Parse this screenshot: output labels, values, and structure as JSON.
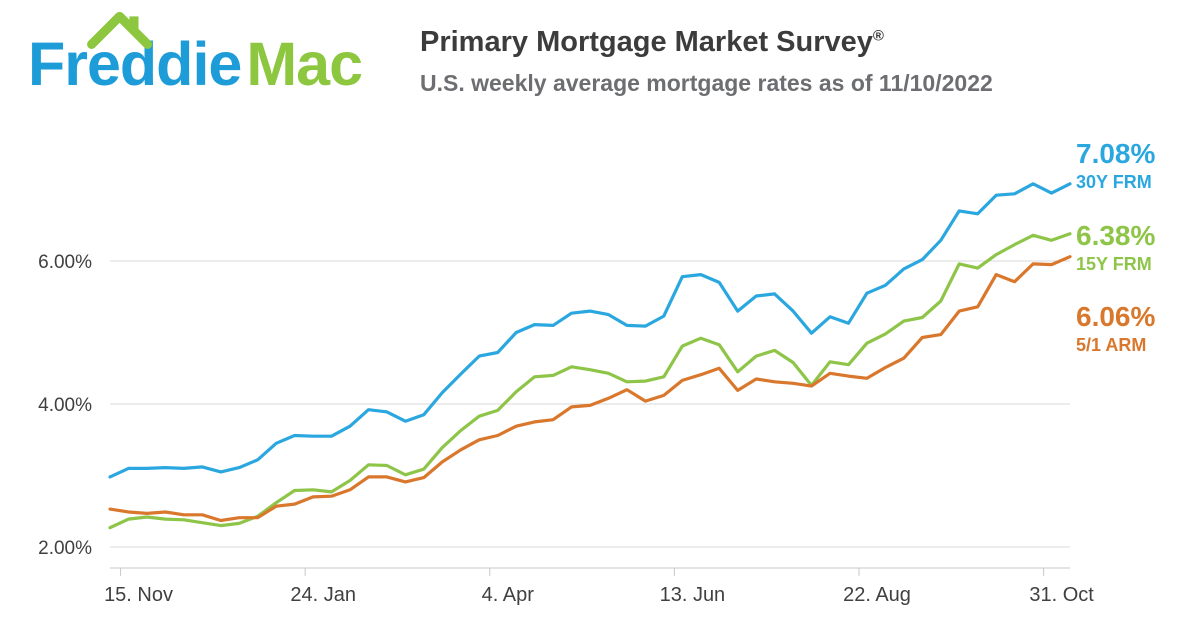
{
  "header": {
    "logo_part1": "Freddie",
    "logo_part2": "Mac",
    "title": "Primary Mortgage Market Survey",
    "title_registered": "®",
    "subtitle": "U.S. weekly average mortgage rates as of 11/10/2022"
  },
  "colors": {
    "logo_blue": "#1d9cd8",
    "logo_green": "#8dc63f",
    "line_30y": "#2ba7e0",
    "line_15y": "#8ec549",
    "line_51arm": "#d9782d",
    "grid": "#d8d8d8",
    "axis": "#c9c9c9",
    "tick_text": "#404040"
  },
  "legend": [
    {
      "rate": "7.08%",
      "label": "30Y FRM",
      "color": "#2ba7e0"
    },
    {
      "rate": "6.38%",
      "label": "15Y FRM",
      "color": "#8ec549"
    },
    {
      "rate": "6.06%",
      "label": "5/1 ARM",
      "color": "#d9782d"
    }
  ],
  "chart_data": {
    "type": "line",
    "title": "Primary Mortgage Market Survey",
    "subtitle": "U.S. weekly average mortgage rates as of 11/10/2022",
    "x_unit": "weekly",
    "x_range": [
      "2021-11-11",
      "2022-11-10"
    ],
    "grid": "horizontal",
    "legend_position": "right",
    "ylim": [
      1.7,
      7.6
    ],
    "y_ticks": [
      {
        "label": "2.00%",
        "value": 2
      },
      {
        "label": "4.00%",
        "value": 4
      },
      {
        "label": "6.00%",
        "value": 6
      }
    ],
    "x_ticks": [
      {
        "label": "15. Nov",
        "index": 0.571
      },
      {
        "label": "24. Jan",
        "index": 10.571
      },
      {
        "label": "4. Apr",
        "index": 20.571
      },
      {
        "label": "13. Jun",
        "index": 30.571
      },
      {
        "label": "22. Aug",
        "index": 40.571
      },
      {
        "label": "31. Oct",
        "index": 50.571
      }
    ],
    "series": [
      {
        "name": "30Y FRM",
        "color": "#2ba7e0",
        "final_label": "7.08%",
        "values": [
          2.98,
          3.1,
          3.1,
          3.11,
          3.1,
          3.12,
          3.05,
          3.11,
          3.22,
          3.45,
          3.56,
          3.55,
          3.55,
          3.69,
          3.92,
          3.89,
          3.76,
          3.85,
          4.16,
          4.42,
          4.67,
          4.72,
          5.0,
          5.11,
          5.1,
          5.27,
          5.3,
          5.25,
          5.1,
          5.09,
          5.23,
          5.78,
          5.81,
          5.7,
          5.3,
          5.51,
          5.54,
          5.3,
          4.99,
          5.22,
          5.13,
          5.55,
          5.66,
          5.89,
          6.02,
          6.29,
          6.7,
          6.66,
          6.92,
          6.94,
          7.08,
          6.95,
          7.08
        ]
      },
      {
        "name": "15Y FRM",
        "color": "#8ec549",
        "final_label": "6.38%",
        "values": [
          2.27,
          2.39,
          2.42,
          2.39,
          2.38,
          2.34,
          2.3,
          2.33,
          2.43,
          2.62,
          2.79,
          2.8,
          2.77,
          2.93,
          3.15,
          3.14,
          3.01,
          3.09,
          3.39,
          3.63,
          3.83,
          3.91,
          4.17,
          4.38,
          4.4,
          4.52,
          4.48,
          4.43,
          4.31,
          4.32,
          4.38,
          4.81,
          4.92,
          4.83,
          4.45,
          4.67,
          4.75,
          4.58,
          4.26,
          4.59,
          4.55,
          4.85,
          4.98,
          5.16,
          5.21,
          5.44,
          5.96,
          5.9,
          6.09,
          6.23,
          6.36,
          6.29,
          6.38
        ]
      },
      {
        "name": "5/1 ARM",
        "color": "#d9782d",
        "final_label": "6.06%",
        "values": [
          2.53,
          2.49,
          2.47,
          2.49,
          2.45,
          2.45,
          2.37,
          2.41,
          2.41,
          2.57,
          2.6,
          2.7,
          2.71,
          2.8,
          2.98,
          2.98,
          2.91,
          2.97,
          3.19,
          3.36,
          3.5,
          3.56,
          3.69,
          3.75,
          3.78,
          3.96,
          3.98,
          4.08,
          4.2,
          4.04,
          4.12,
          4.33,
          4.41,
          4.5,
          4.19,
          4.35,
          4.31,
          4.29,
          4.25,
          4.43,
          4.39,
          4.36,
          4.51,
          4.64,
          4.93,
          4.97,
          5.3,
          5.36,
          5.81,
          5.71,
          5.96,
          5.95,
          6.06
        ]
      }
    ]
  }
}
